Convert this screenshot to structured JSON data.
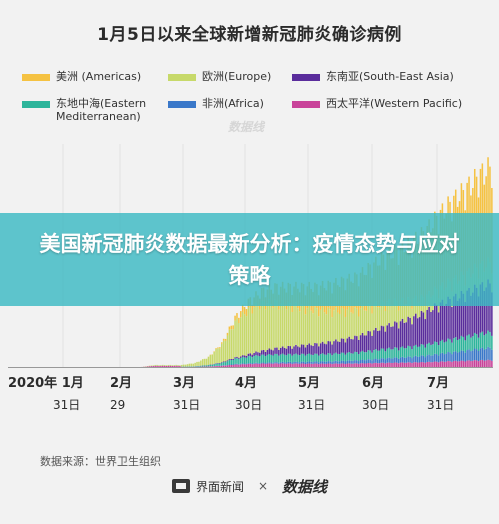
{
  "title": "1月5日以来全球新增新冠肺炎确诊病例",
  "banner_text": "美国新冠肺炎数据最新分析：疫情态势与应对策略",
  "source": "数据来源：世界卫生组织",
  "footer": {
    "brand": "界面新闻",
    "times": "×",
    "partner": "数据线"
  },
  "watermark": "数据线",
  "legend": [
    {
      "label": "美洲 (Americas)",
      "color": "#f5c242"
    },
    {
      "label": "欧洲(Europe)",
      "color": "#c7d96a"
    },
    {
      "label": "东南亚(South-East Asia)",
      "color": "#5a2d9c"
    },
    {
      "label": "东地中海(Eastern Mediterranean)",
      "color": "#2db59b"
    },
    {
      "label": "非洲(Africa)",
      "color": "#3a78c9"
    },
    {
      "label": "西太平洋(Western Pacific)",
      "color": "#c9439a"
    }
  ],
  "chart_data": {
    "type": "bar",
    "stacked": true,
    "title": "1月5日以来全球新增新冠肺炎确诊病例",
    "x_ticks": [
      {
        "month": "2020年 1月",
        "day": "31日"
      },
      {
        "month": "2月",
        "day": "29"
      },
      {
        "month": "3月",
        "day": "31日"
      },
      {
        "month": "4月",
        "day": "30日"
      },
      {
        "month": "5月",
        "day": "31日"
      },
      {
        "month": "6月",
        "day": "30日"
      },
      {
        "month": "7月",
        "day": "31日"
      }
    ],
    "grid": true,
    "legend_position": "top",
    "series": [
      {
        "name": "美洲 (Americas)",
        "color": "#f5c242"
      },
      {
        "name": "欧洲(Europe)",
        "color": "#c7d96a"
      },
      {
        "name": "东南亚(South-East Asia)",
        "color": "#5a2d9c"
      },
      {
        "name": "东地中海(Eastern Mediterranean)",
        "color": "#2db59b"
      },
      {
        "name": "非洲(Africa)",
        "color": "#3a78c9"
      },
      {
        "name": "西太平洋(Western Pacific)",
        "color": "#c9439a"
      }
    ],
    "note": "daily stacked counts estimated; no y-axis values printed",
    "weekly_totals_relative": [
      0,
      0,
      0,
      0,
      0,
      0,
      0,
      0,
      0.01,
      0.01,
      0.01,
      0.02,
      0.05,
      0.12,
      0.25,
      0.33,
      0.38,
      0.4,
      0.4,
      0.4,
      0.4,
      0.41,
      0.43,
      0.45,
      0.5,
      0.55,
      0.58,
      0.62,
      0.67,
      0.75,
      0.82,
      0.88,
      0.95,
      1.0
    ]
  }
}
